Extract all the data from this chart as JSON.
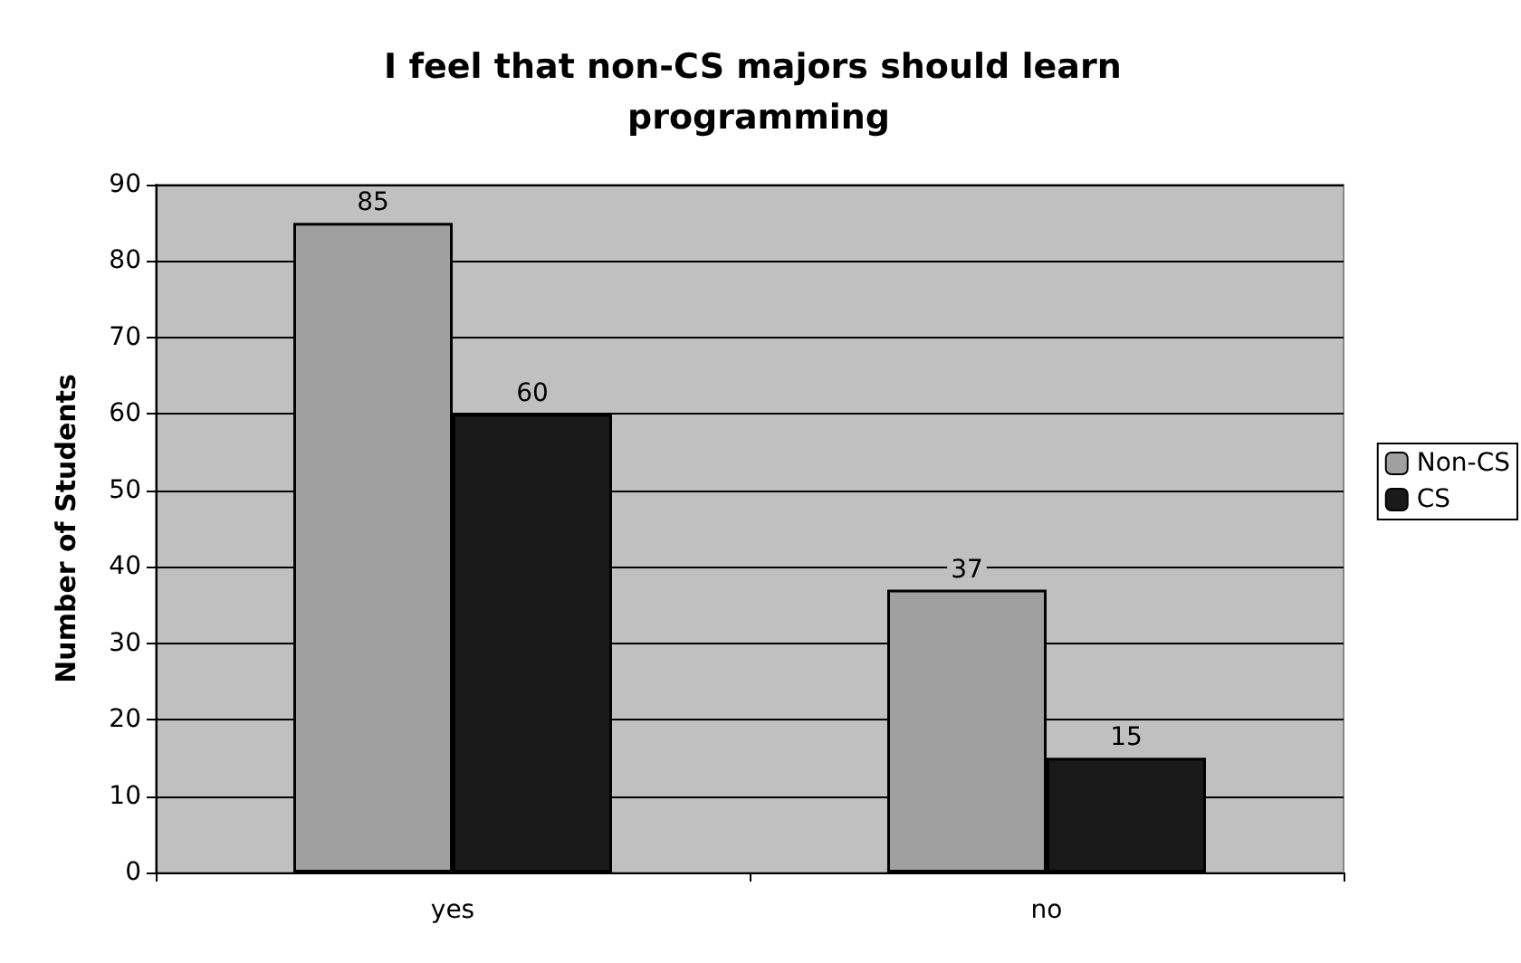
{
  "chart_data": {
    "type": "bar",
    "title": "I feel that non-CS majors should learn programming",
    "ylabel": "Number of Students",
    "categories": [
      "yes",
      "no"
    ],
    "series": [
      {
        "name": "Non-CS",
        "color": "#a0a0a0",
        "values": [
          85,
          37
        ]
      },
      {
        "name": "CS",
        "color": "#1a1a1a",
        "values": [
          60,
          15
        ]
      }
    ],
    "ylim": [
      0,
      90
    ],
    "yticks": [
      0,
      10,
      20,
      30,
      40,
      50,
      60,
      70,
      80,
      90
    ],
    "grid": "y",
    "legend": "right",
    "data_labels": true
  }
}
